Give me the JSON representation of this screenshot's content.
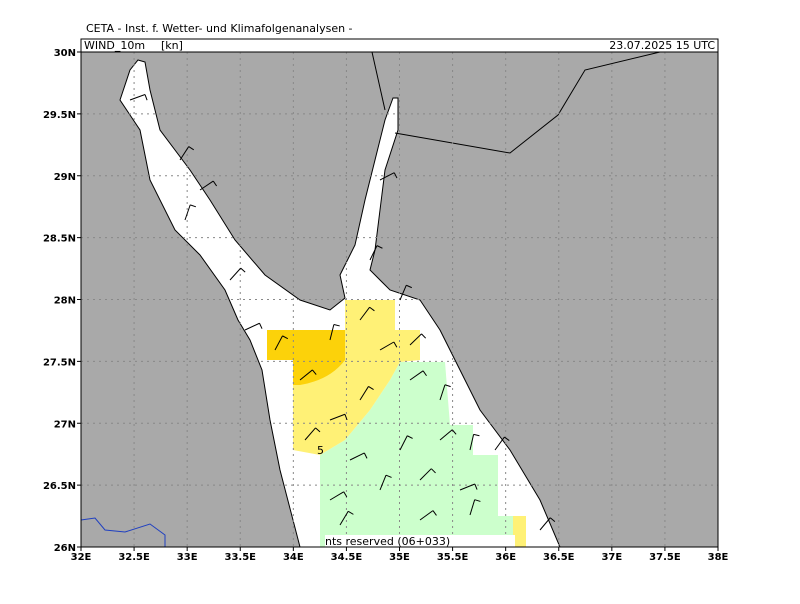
{
  "header": {
    "title": "CETA - Inst. f. Wetter- und Klimafolgenanalysen -"
  },
  "panel": {
    "field": "WIND_10m",
    "unit": "[kn]",
    "valid": "23.07.2025 15 UTC"
  },
  "axes": {
    "x_labels": [
      "32E",
      "32.5E",
      "33E",
      "33.5E",
      "34E",
      "34.5E",
      "35E",
      "35.5E",
      "36E",
      "36.5E",
      "37E",
      "37.5E",
      "38E"
    ],
    "y_labels": [
      "26N",
      "26.5N",
      "27N",
      "27.5N",
      "28N",
      "28.5N",
      "29N",
      "29.5N",
      "30N"
    ]
  },
  "annotations": {
    "contour_label": "5",
    "footer": "nts reserved (06+033)"
  }
}
